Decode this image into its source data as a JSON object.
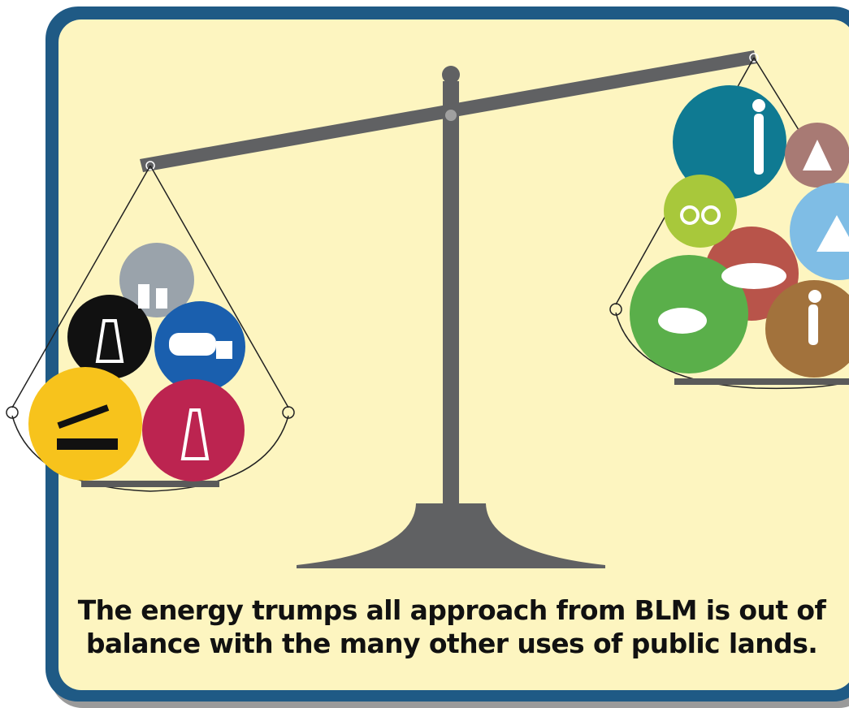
{
  "caption": {
    "lines": [
      "The energy trumps all approach from BLM is out of",
      "balance with the many other uses of public lands."
    ]
  }
}
